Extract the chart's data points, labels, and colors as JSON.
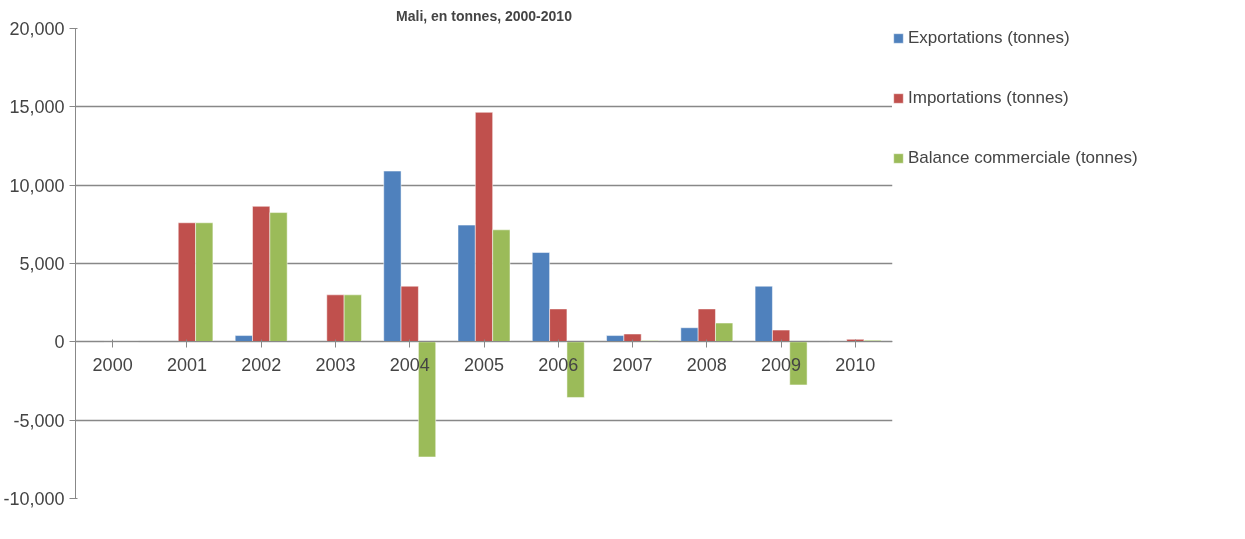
{
  "chart_data": {
    "type": "bar",
    "title": "Mali, en tonnes, 2000-2010",
    "categories": [
      "2000",
      "2001",
      "2002",
      "2003",
      "2004",
      "2005",
      "2006",
      "2007",
      "2008",
      "2009",
      "2010"
    ],
    "series": [
      {
        "name": "Exportations (tonnes)",
        "color": "#4f81bd",
        "values": [
          null,
          null,
          400,
          null,
          10900,
          7450,
          5700,
          400,
          900,
          3550,
          40
        ]
      },
      {
        "name": "Importations (tonnes)",
        "color": "#c0504d",
        "values": [
          40,
          7600,
          8650,
          3000,
          3550,
          14650,
          2100,
          500,
          2100,
          750,
          160
        ]
      },
      {
        "name": "Balance commerciale (tonnes)",
        "color": "#9bbb59",
        "values": [
          40,
          7600,
          8250,
          3000,
          -7350,
          7150,
          -3550,
          80,
          1200,
          -2750,
          100
        ]
      }
    ],
    "ylim": [
      -10000,
      20000
    ],
    "yticks": [
      {
        "value": -10000,
        "label": "-10,000"
      },
      {
        "value": -5000,
        "label": "-5,000"
      },
      0,
      {
        "value": 5000,
        "label": "5,000"
      },
      {
        "value": 10000,
        "label": "10,000"
      },
      {
        "value": 15000,
        "label": "15,000"
      },
      {
        "value": 20000,
        "label": "20,000"
      }
    ],
    "grid": "y",
    "legend": "right"
  }
}
